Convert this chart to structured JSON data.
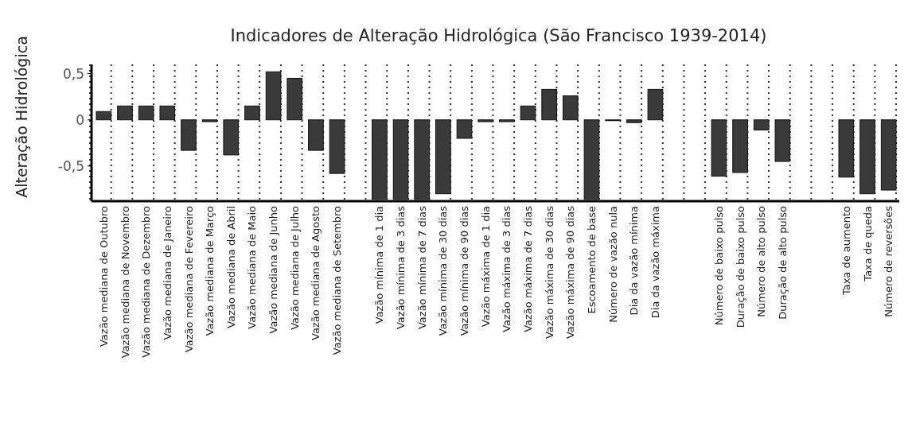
{
  "chart_data": {
    "type": "bar",
    "title": "Indicadores de Alteração Hidrológica (São Francisco 1939-2014)",
    "ylabel": "Alteração Hidrológica",
    "categories": [
      "Vazão mediana de Outubro",
      "Vazão mediana de Novembro",
      "Vazão mediana de Dezembro",
      "Vazão mediana de Janeiro",
      "Vazão mediana de Fevereiro",
      "Vazão mediana de Março",
      "Vazão mediana de Abril",
      "Vazão mediana de Maio",
      "Vazão mediana de Junho",
      "Vazão mediana de Julho",
      "Vazão mediana de Agosto",
      "Vazão mediana de Setembro",
      null,
      "Vazão mínima de 1 dia",
      "Vazão mínima de 3 dias",
      "Vazão mínima de 7 dias",
      "Vazão mínima de 30 dias",
      "Vazão mínima de 90 dias",
      "Vazão máxima de 1 dia",
      "Vazão máxima de 3 dias",
      "Vazão máxima de 7 dias",
      "Vazão máxima de 30 dias",
      "Vazão máxima de 90 dias",
      "Escoamento de base",
      "Número de vazão nula",
      "Dia da vazão mínima",
      "Dia da vazão máxima",
      null,
      null,
      "Número de baixo pulso",
      "Duração de baixo pulso",
      "Número de alto pulso",
      "Duração de alto pulso",
      null,
      null,
      "Taxa de aumento",
      "Taxa de queda",
      "Número de reversões"
    ],
    "values": [
      0.09,
      0.15,
      0.15,
      0.15,
      -0.33,
      -0.02,
      -0.38,
      0.15,
      0.52,
      0.45,
      -0.33,
      -0.58,
      null,
      -0.86,
      -0.86,
      -0.86,
      -0.8,
      -0.2,
      -0.02,
      -0.02,
      0.15,
      0.33,
      0.26,
      -0.86,
      0,
      -0.03,
      0.33,
      null,
      null,
      -0.61,
      -0.57,
      -0.11,
      -0.45,
      null,
      null,
      -0.62,
      -0.8,
      -0.76
    ],
    "color": "#3a3a3a",
    "ylim": [
      -0.88,
      0.6
    ],
    "yticks": [
      {
        "value": 0.5,
        "label": "0,5"
      },
      0,
      {
        "value": -0.5,
        "label": "-0,5"
      }
    ],
    "grid": "x"
  }
}
